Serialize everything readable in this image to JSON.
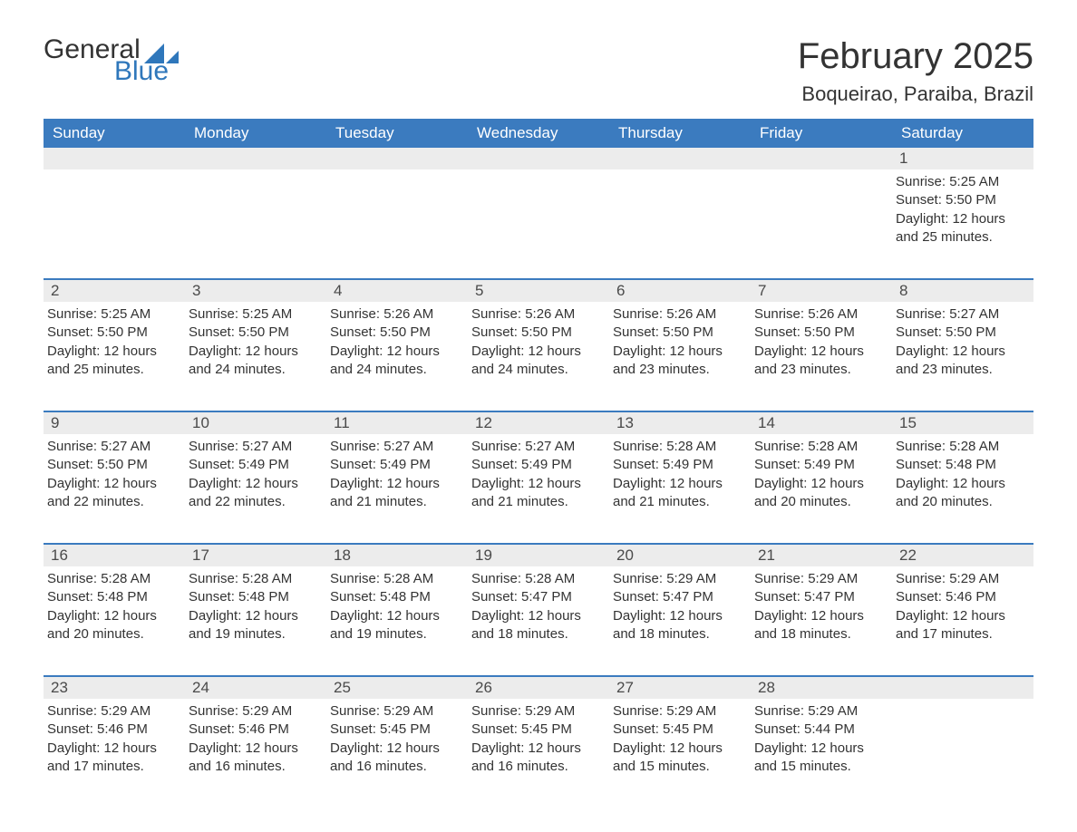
{
  "logo": {
    "general": "General",
    "blue": "Blue",
    "sail_color": "#2f77bb"
  },
  "title": "February 2025",
  "location": "Boqueirao, Paraiba, Brazil",
  "colors": {
    "header_bg": "#3b7bbf",
    "header_text": "#ffffff",
    "daynum_bg": "#ececec",
    "rule": "#3b7bbf",
    "text": "#333333",
    "background": "#ffffff"
  },
  "weekdays": [
    "Sunday",
    "Monday",
    "Tuesday",
    "Wednesday",
    "Thursday",
    "Friday",
    "Saturday"
  ],
  "weeks": [
    {
      "days": [
        null,
        null,
        null,
        null,
        null,
        null,
        {
          "n": "1",
          "sunrise": "5:25 AM",
          "sunset": "5:50 PM",
          "daylight": "12 hours and 25 minutes."
        }
      ]
    },
    {
      "days": [
        {
          "n": "2",
          "sunrise": "5:25 AM",
          "sunset": "5:50 PM",
          "daylight": "12 hours and 25 minutes."
        },
        {
          "n": "3",
          "sunrise": "5:25 AM",
          "sunset": "5:50 PM",
          "daylight": "12 hours and 24 minutes."
        },
        {
          "n": "4",
          "sunrise": "5:26 AM",
          "sunset": "5:50 PM",
          "daylight": "12 hours and 24 minutes."
        },
        {
          "n": "5",
          "sunrise": "5:26 AM",
          "sunset": "5:50 PM",
          "daylight": "12 hours and 24 minutes."
        },
        {
          "n": "6",
          "sunrise": "5:26 AM",
          "sunset": "5:50 PM",
          "daylight": "12 hours and 23 minutes."
        },
        {
          "n": "7",
          "sunrise": "5:26 AM",
          "sunset": "5:50 PM",
          "daylight": "12 hours and 23 minutes."
        },
        {
          "n": "8",
          "sunrise": "5:27 AM",
          "sunset": "5:50 PM",
          "daylight": "12 hours and 23 minutes."
        }
      ]
    },
    {
      "days": [
        {
          "n": "9",
          "sunrise": "5:27 AM",
          "sunset": "5:50 PM",
          "daylight": "12 hours and 22 minutes."
        },
        {
          "n": "10",
          "sunrise": "5:27 AM",
          "sunset": "5:49 PM",
          "daylight": "12 hours and 22 minutes."
        },
        {
          "n": "11",
          "sunrise": "5:27 AM",
          "sunset": "5:49 PM",
          "daylight": "12 hours and 21 minutes."
        },
        {
          "n": "12",
          "sunrise": "5:27 AM",
          "sunset": "5:49 PM",
          "daylight": "12 hours and 21 minutes."
        },
        {
          "n": "13",
          "sunrise": "5:28 AM",
          "sunset": "5:49 PM",
          "daylight": "12 hours and 21 minutes."
        },
        {
          "n": "14",
          "sunrise": "5:28 AM",
          "sunset": "5:49 PM",
          "daylight": "12 hours and 20 minutes."
        },
        {
          "n": "15",
          "sunrise": "5:28 AM",
          "sunset": "5:48 PM",
          "daylight": "12 hours and 20 minutes."
        }
      ]
    },
    {
      "days": [
        {
          "n": "16",
          "sunrise": "5:28 AM",
          "sunset": "5:48 PM",
          "daylight": "12 hours and 20 minutes."
        },
        {
          "n": "17",
          "sunrise": "5:28 AM",
          "sunset": "5:48 PM",
          "daylight": "12 hours and 19 minutes."
        },
        {
          "n": "18",
          "sunrise": "5:28 AM",
          "sunset": "5:48 PM",
          "daylight": "12 hours and 19 minutes."
        },
        {
          "n": "19",
          "sunrise": "5:28 AM",
          "sunset": "5:47 PM",
          "daylight": "12 hours and 18 minutes."
        },
        {
          "n": "20",
          "sunrise": "5:29 AM",
          "sunset": "5:47 PM",
          "daylight": "12 hours and 18 minutes."
        },
        {
          "n": "21",
          "sunrise": "5:29 AM",
          "sunset": "5:47 PM",
          "daylight": "12 hours and 18 minutes."
        },
        {
          "n": "22",
          "sunrise": "5:29 AM",
          "sunset": "5:46 PM",
          "daylight": "12 hours and 17 minutes."
        }
      ]
    },
    {
      "days": [
        {
          "n": "23",
          "sunrise": "5:29 AM",
          "sunset": "5:46 PM",
          "daylight": "12 hours and 17 minutes."
        },
        {
          "n": "24",
          "sunrise": "5:29 AM",
          "sunset": "5:46 PM",
          "daylight": "12 hours and 16 minutes."
        },
        {
          "n": "25",
          "sunrise": "5:29 AM",
          "sunset": "5:45 PM",
          "daylight": "12 hours and 16 minutes."
        },
        {
          "n": "26",
          "sunrise": "5:29 AM",
          "sunset": "5:45 PM",
          "daylight": "12 hours and 16 minutes."
        },
        {
          "n": "27",
          "sunrise": "5:29 AM",
          "sunset": "5:45 PM",
          "daylight": "12 hours and 15 minutes."
        },
        {
          "n": "28",
          "sunrise": "5:29 AM",
          "sunset": "5:44 PM",
          "daylight": "12 hours and 15 minutes."
        },
        null
      ]
    }
  ],
  "labels": {
    "sunrise": "Sunrise:",
    "sunset": "Sunset:",
    "daylight": "Daylight:"
  }
}
